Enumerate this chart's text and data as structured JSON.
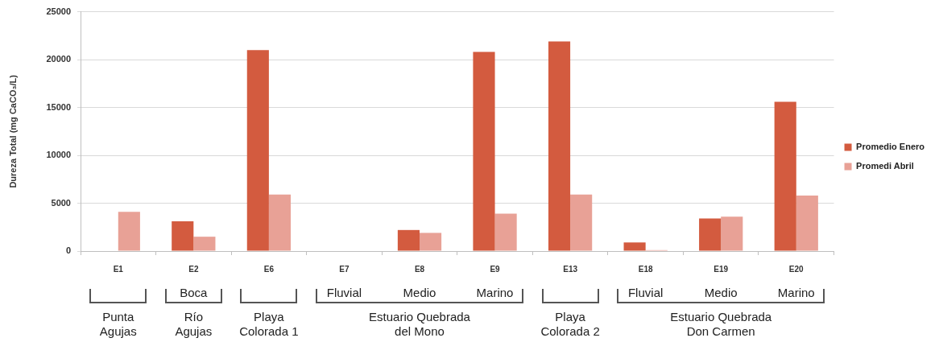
{
  "chart_data": {
    "type": "bar",
    "categories": [
      "E1",
      "E2",
      "E6",
      "E7",
      "E8",
      "E9",
      "E13",
      "E18",
      "E19",
      "E20"
    ],
    "series": [
      {
        "name": "Promedio Enero",
        "color": "#d35b3f",
        "values": [
          null,
          3100,
          21000,
          null,
          2200,
          20800,
          21900,
          900,
          3400,
          15600
        ]
      },
      {
        "name": "Promedi Abril",
        "color": "#e8a196",
        "values": [
          4100,
          1500,
          5900,
          null,
          1900,
          3900,
          5900,
          100,
          3600,
          5800
        ]
      }
    ],
    "ylabel": "Dureza Total (mg CaCO₃/L)",
    "ylim": [
      0,
      25000
    ],
    "yticks": [
      0,
      5000,
      10000,
      15000,
      20000,
      25000
    ],
    "grid": "y",
    "legend": "right",
    "annotations": [
      "Boca",
      "Fluvial",
      "Medio",
      "Marino",
      "Fluvial",
      "Medio",
      "Marino",
      "Punta\nAgujas",
      "Río\nAgujas",
      "Playa\nColorada 1",
      "Estuario Quebrada\ndel Mono",
      "Playa\nColorada 2",
      "Estuario Quebrada\nDon Carmen"
    ]
  }
}
